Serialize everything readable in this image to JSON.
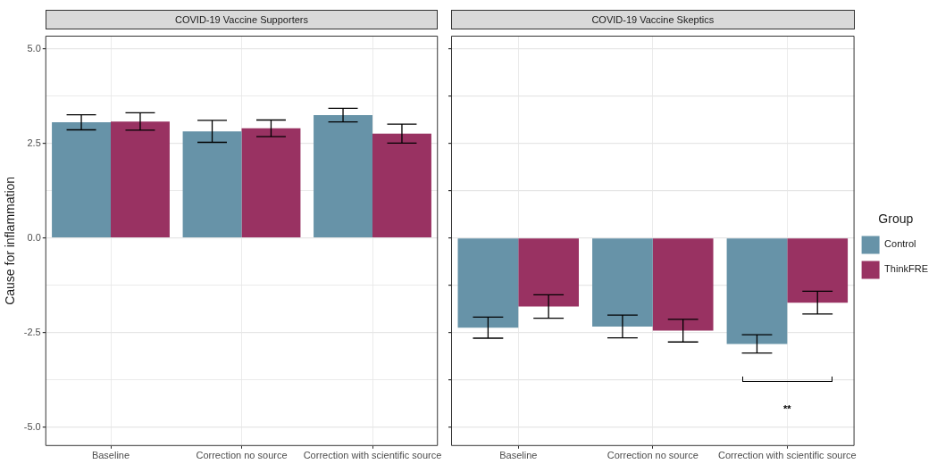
{
  "chart_data": [
    {
      "type": "bar",
      "title": "COVID-19 Vaccine Supporters",
      "ylabel": "Cause for inflammation",
      "categories": [
        "Baseline",
        "Correction no source",
        "Correction with scientific source"
      ],
      "series": [
        {
          "color": "#6793a8",
          "values": [
            3.06,
            2.82,
            3.25
          ],
          "errors": [
            0.2,
            0.29,
            0.18
          ]
        },
        {
          "color": "#993262",
          "values": [
            3.08,
            2.9,
            2.76
          ],
          "errors": [
            0.23,
            0.22,
            0.25
          ]
        }
      ],
      "ylim": [
        -5.5,
        5.35
      ],
      "yticks": [
        {
          "value": -5,
          "label": "-5.0"
        },
        {
          "value": -3.75,
          "label": null
        },
        -2.5,
        {
          "value": -1.25,
          "label": null
        },
        {
          "value": 0,
          "label": "0.0"
        },
        {
          "value": 1.25,
          "label": null
        },
        2.5,
        {
          "value": 3.75,
          "label": null
        },
        {
          "value": 5,
          "label": "5.0"
        }
      ],
      "grid": true
    },
    {
      "type": "bar",
      "title": "COVID-19 Vaccine Skeptics",
      "categories": [
        "Baseline",
        "Correction no source",
        "Correction with scientific source"
      ],
      "series": [
        {
          "name": "Control",
          "color": "#6793a8",
          "values": [
            -2.37,
            -2.34,
            -2.8
          ],
          "errors": [
            0.28,
            0.3,
            0.24
          ]
        },
        {
          "name": "ThinkFRE",
          "color": "#993262",
          "values": [
            -1.81,
            -2.45,
            -1.71
          ],
          "errors": [
            0.31,
            0.3,
            0.3
          ]
        }
      ],
      "ylim": [
        -5.5,
        5.35
      ],
      "yticks": [
        -5,
        -3.75,
        -2.5,
        -1.25,
        0,
        1.25,
        2.5,
        3.75,
        5
      ],
      "tick_labels": "x",
      "grid": true,
      "legend": "right",
      "legend_title": "Group",
      "annotations": [
        "**"
      ]
    }
  ]
}
